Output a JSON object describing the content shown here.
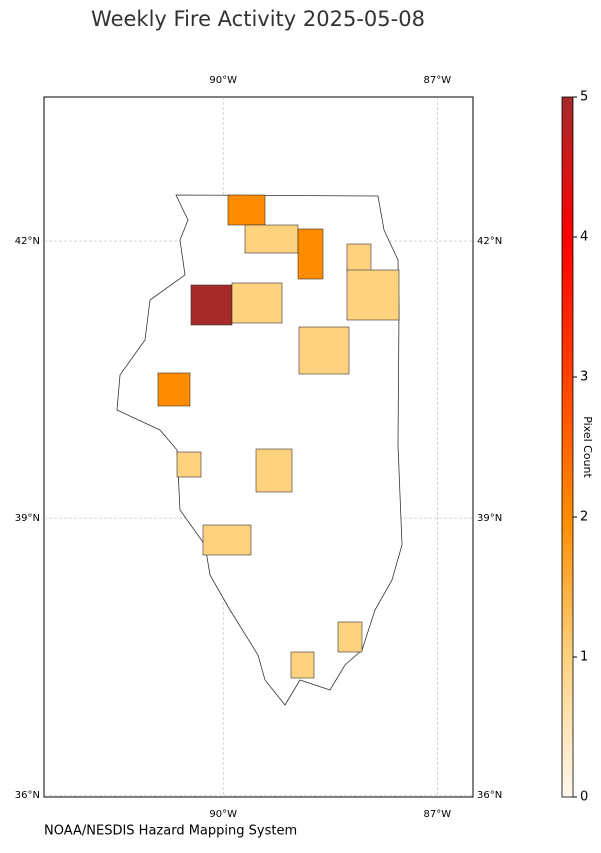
{
  "title": "Weekly Fire Activity 2025-05-08",
  "credit": "NOAA/NESDIS Hazard Mapping System",
  "map": {
    "xlim": [
      -92.51,
      -86.5
    ],
    "ylim": [
      35.98,
      43.56
    ],
    "xticks": [
      {
        "value": -90,
        "label": "90°W"
      },
      {
        "value": -87,
        "label": "87°W"
      }
    ],
    "yticks": [
      {
        "value": 42,
        "label": "42°N"
      },
      {
        "value": 39,
        "label": "39°N"
      },
      {
        "value": 36,
        "label": "36°N"
      }
    ],
    "values": [
      2,
      1,
      2,
      1,
      5,
      1,
      1,
      1,
      2,
      1,
      1,
      1,
      1,
      1
    ]
  },
  "colorbar": {
    "label": "Pixel Count",
    "lim": [
      0,
      5
    ],
    "ticks": [
      0,
      1,
      2,
      3,
      4,
      5
    ],
    "colormap": [
      "#fff8ee",
      "#ffd27f",
      "#ff8c00",
      "#ff4000",
      "#ff0000",
      "#a52a2a"
    ]
  }
}
